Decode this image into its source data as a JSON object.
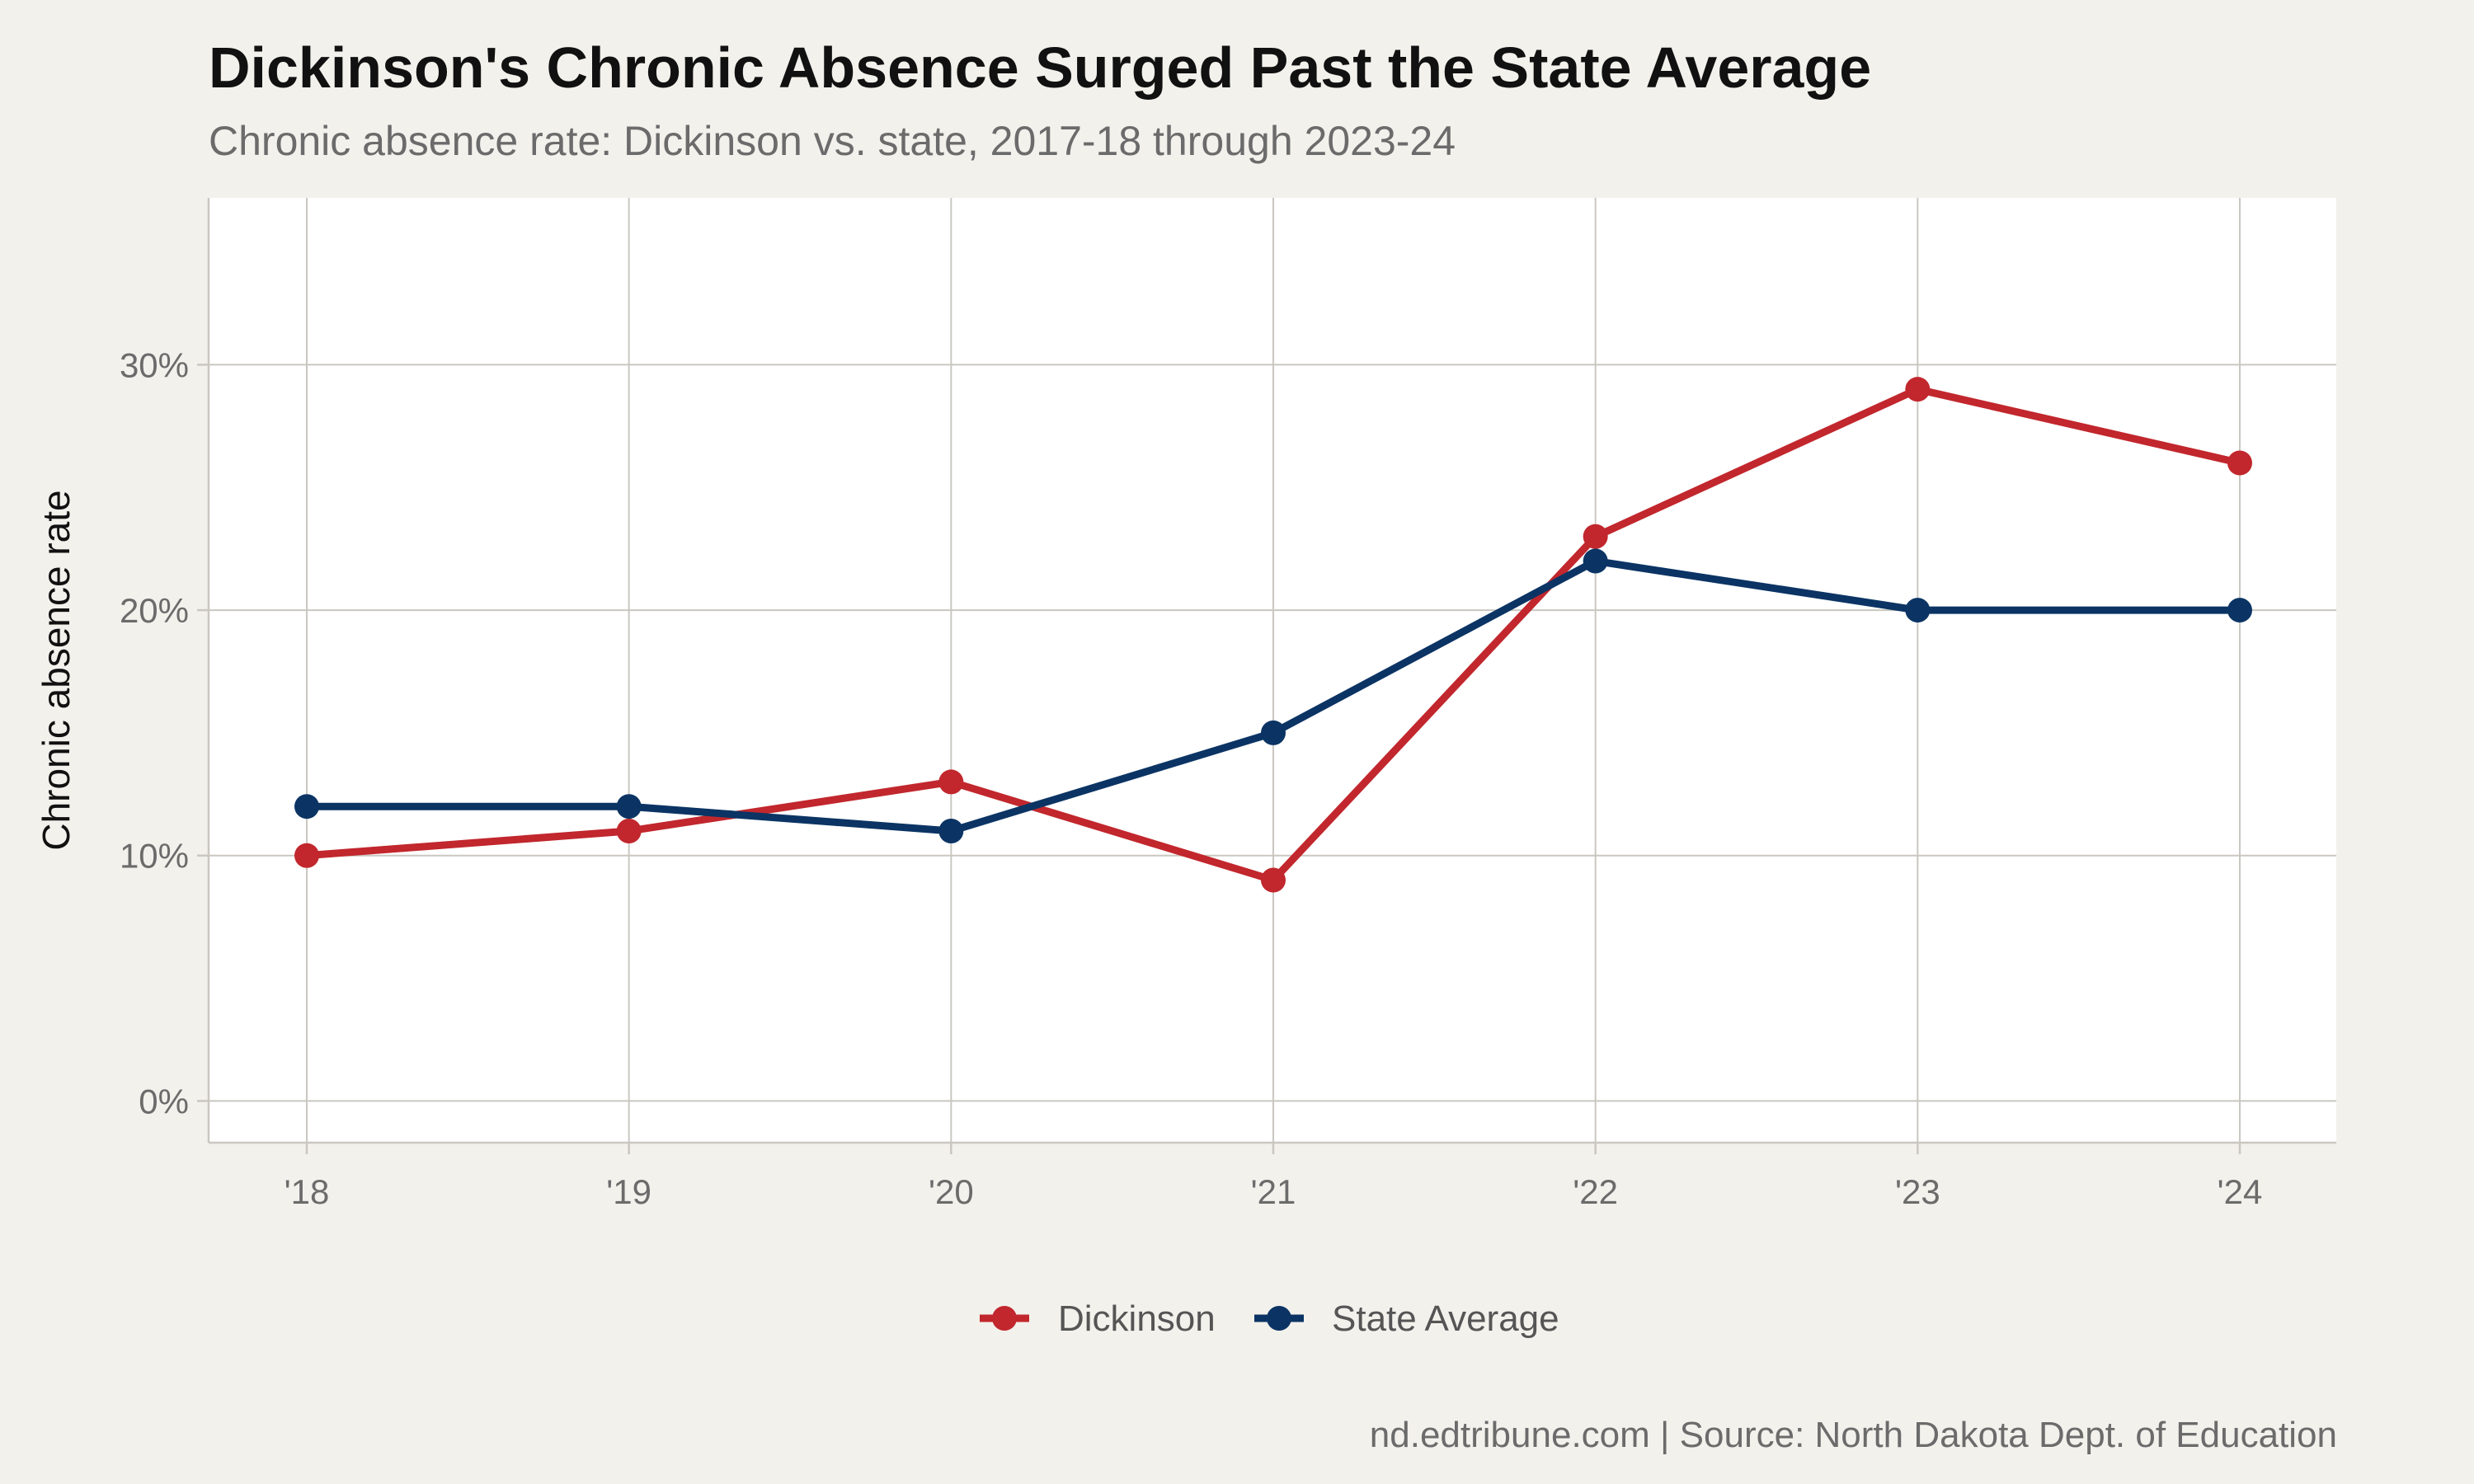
{
  "title": "Dickinson's Chronic Absence Surged Past the State Average",
  "subtitle": "Chronic absence rate: Dickinson vs. state, 2017-18 through 2023-24",
  "caption": "nd.edtribune.com | Source: North Dakota Dept. of Education",
  "colors": {
    "background": "#f3f1ec",
    "panel": "#ffffff",
    "grid": "#c9c7c0",
    "dickinson": "#c1272d",
    "state": "#0b3464"
  },
  "chart_data": {
    "type": "line",
    "categories": [
      "'18",
      "'19",
      "'20",
      "'21",
      "'22",
      "'23",
      "'24"
    ],
    "series": [
      {
        "name": "Dickinson",
        "color": "#c1272d",
        "values": [
          10,
          11,
          13,
          9,
          23,
          29,
          26
        ]
      },
      {
        "name": "State Average",
        "color": "#0b3464",
        "values": [
          12,
          12,
          11,
          15,
          22,
          20,
          20
        ]
      }
    ],
    "xlabel": "",
    "ylabel": "Chronic absence rate",
    "ylim": [
      -1.7,
      36.8
    ],
    "yticks": [
      0,
      10,
      20,
      30
    ],
    "ytick_labels": [
      "0%",
      "10%",
      "20%",
      "30%"
    ],
    "grid": true,
    "legend_position": "bottom"
  }
}
